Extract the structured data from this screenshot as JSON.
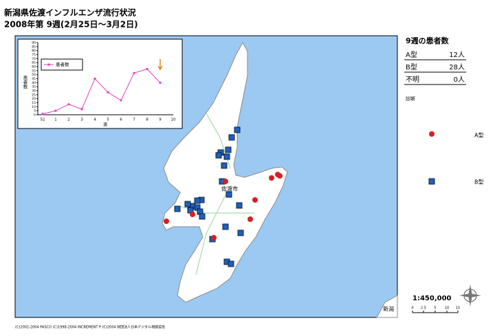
{
  "header": {
    "title": "新潟県佐渡インフルエンザ流行状況",
    "subtitle": "2008年第 9週(2月25日～3月2日)"
  },
  "summary": {
    "title": "9週の患者数",
    "rows": [
      [
        "A型",
        "12人"
      ],
      [
        "B型",
        "28人"
      ],
      [
        "不明",
        "0人"
      ]
    ]
  },
  "legend": {
    "title": "診断",
    "items": [
      "A型",
      "B型"
    ]
  },
  "map": {
    "city_label": "佐渡市",
    "corner_label": "新潟",
    "scale": "1:450,000",
    "scale_ticks": [
      "0",
      "2.5",
      "5",
      "10",
      "15"
    ]
  },
  "footer": "(C)2002-2004 PASCO (C)1998-2004 INCREMENT P (C)2004 財団法人日本デジタル地図協会",
  "chart_data": {
    "type": "line",
    "x_label": "週",
    "y_label": "患者数",
    "categories": [
      "52",
      "1",
      "2",
      "3",
      "4",
      "5",
      "6",
      "7",
      "8",
      "9",
      "10"
    ],
    "series": [
      {
        "name": "患者数",
        "color": "#e040c0",
        "values": [
          1,
          5,
          13,
          7,
          45,
          28,
          18,
          52,
          57,
          40,
          null
        ]
      }
    ],
    "ylim": [
      0,
      90
    ],
    "yticks": [
      0,
      5,
      10,
      15,
      20,
      25,
      30,
      35,
      40,
      45,
      50,
      55,
      60,
      65,
      70,
      75,
      80,
      85,
      90
    ]
  }
}
